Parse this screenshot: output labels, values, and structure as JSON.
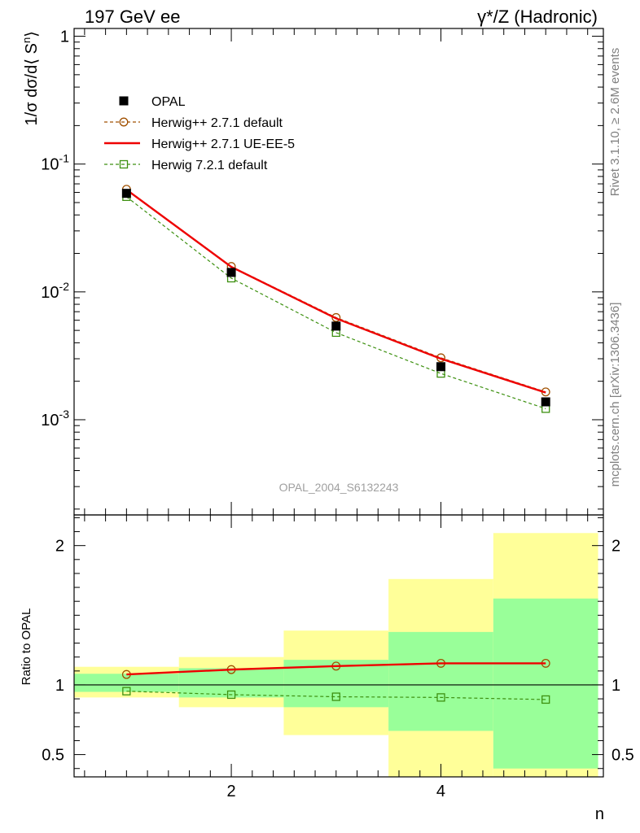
{
  "header": {
    "left_title": "197 GeV ee",
    "right_title": "γ*/Z (Hadronic)"
  },
  "side_labels": {
    "rivet": "Rivet 3.1.10, ≥ 2.6M events",
    "mcplots": "mcplots.cern.ch [arXiv:1306.3436]"
  },
  "watermark": "OPAL_2004_S6132243",
  "chart_data": [
    {
      "type": "line",
      "panel": "main",
      "title": "",
      "ylabel": "1/σ dσ/d⟨ S^n⟩",
      "xlabel": "n",
      "yscale": "log",
      "xlim": [
        0.5,
        5.55
      ],
      "ylim": [
        0.00018,
        1.15
      ],
      "x": [
        1,
        2,
        3,
        4,
        5
      ],
      "ytick_labels": [
        "1",
        "10^-1",
        "10^-2",
        "10^-3"
      ],
      "legend_position": "top-left",
      "series": [
        {
          "name": "OPAL",
          "marker": "filled-square",
          "color": "#000000",
          "values": [
            0.059,
            0.0142,
            0.0054,
            0.0026,
            0.00138
          ]
        },
        {
          "name": "Herwig++ 2.7.1 default",
          "marker": "open-circle",
          "line": "dashed",
          "color": "#a05000",
          "values": [
            0.0635,
            0.0158,
            0.0063,
            0.00305,
            0.00165
          ]
        },
        {
          "name": "Herwig++ 2.7.1 UE-EE-5",
          "marker": "none",
          "line": "solid",
          "color": "#ee0000",
          "values": [
            0.063,
            0.0157,
            0.0062,
            0.003,
            0.00163
          ]
        },
        {
          "name": "Herwig 7.2.1 default",
          "marker": "open-square",
          "line": "dashed",
          "color": "#3d9010",
          "values": [
            0.0555,
            0.0128,
            0.0048,
            0.0023,
            0.00122
          ]
        }
      ]
    },
    {
      "type": "line",
      "panel": "ratio",
      "ylabel": "Ratio to OPAL",
      "xlabel": "n",
      "ylim": [
        0.34,
        2.22
      ],
      "ytick_labels": [
        "0.5",
        "1",
        "2"
      ],
      "x": [
        1,
        2,
        3,
        4,
        5
      ],
      "bands": [
        {
          "x_from": 0.5,
          "x_to": 1.5,
          "green": [
            0.95,
            1.08
          ],
          "yellow": [
            0.91,
            1.13
          ]
        },
        {
          "x_from": 1.5,
          "x_to": 2.5,
          "green": [
            0.91,
            1.12
          ],
          "yellow": [
            0.84,
            1.2
          ]
        },
        {
          "x_from": 2.5,
          "x_to": 3.5,
          "green": [
            0.84,
            1.18
          ],
          "yellow": [
            0.64,
            1.39
          ]
        },
        {
          "x_from": 3.5,
          "x_to": 4.5,
          "green": [
            0.67,
            1.38
          ],
          "yellow": [
            0.34,
            1.76
          ]
        },
        {
          "x_from": 4.5,
          "x_to": 5.5,
          "green": [
            0.4,
            1.62
          ],
          "yellow": [
            0.34,
            2.09
          ]
        }
      ],
      "series": [
        {
          "name": "Herwig++ 2.7.1 default",
          "marker": "open-circle",
          "line": "dashed",
          "color": "#a05000",
          "values": [
            1.075,
            1.11,
            1.135,
            1.155,
            1.155
          ]
        },
        {
          "name": "Herwig++ 2.7.1 UE-EE-5",
          "marker": "none",
          "line": "solid",
          "color": "#ee0000",
          "values": [
            1.075,
            1.11,
            1.135,
            1.155,
            1.155
          ]
        },
        {
          "name": "Herwig 7.2.1 default",
          "marker": "open-square",
          "line": "dashed",
          "color": "#3d9010",
          "values": [
            0.955,
            0.93,
            0.915,
            0.91,
            0.895
          ]
        }
      ]
    }
  ]
}
